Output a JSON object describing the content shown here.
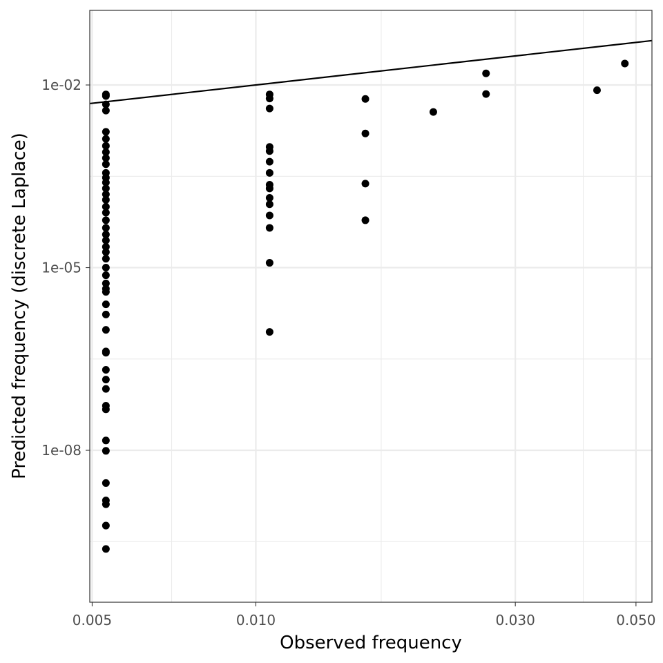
{
  "chart_data": {
    "type": "scatter",
    "title": "",
    "xlabel": "Observed frequency",
    "ylabel": "Predicted frequency (discrete Laplace)",
    "x_scale": "log10",
    "y_scale": "log10",
    "xlim": [
      0.00495,
      0.0535
    ],
    "ylim": [
      3.2e-11,
      0.168
    ],
    "x_ticks": [
      {
        "value": 0.005,
        "label": "0.005"
      },
      {
        "value": 0.01,
        "label": "0.010"
      },
      {
        "value": 0.03,
        "label": "0.030"
      },
      {
        "value": 0.05,
        "label": "0.050"
      }
    ],
    "x_minor_ticks": [
      0.007,
      0.017,
      0.04
    ],
    "y_ticks": [
      {
        "value": 0.01,
        "label": "1e-02"
      },
      {
        "value": 1e-05,
        "label": "1e-05"
      },
      {
        "value": 1e-08,
        "label": "1e-08"
      }
    ],
    "y_minor_ticks": [
      0.3,
      0.000316,
      3.16e-07,
      3.16e-10
    ],
    "grid": true,
    "reference_line": {
      "type": "identity",
      "description": "y = x"
    },
    "series": [
      {
        "marker": "filled-circle",
        "color": "#000000",
        "points": [
          {
            "x": 0.0053,
            "y": 0.007
          },
          {
            "x": 0.0053,
            "y": 0.0066
          },
          {
            "x": 0.0053,
            "y": 0.0048
          },
          {
            "x": 0.0053,
            "y": 0.0038
          },
          {
            "x": 0.0053,
            "y": 0.0017
          },
          {
            "x": 0.0053,
            "y": 0.0013
          },
          {
            "x": 0.0053,
            "y": 0.001
          },
          {
            "x": 0.0053,
            "y": 0.00079
          },
          {
            "x": 0.0053,
            "y": 0.00063
          },
          {
            "x": 0.0053,
            "y": 0.0005
          },
          {
            "x": 0.0053,
            "y": 0.00036
          },
          {
            "x": 0.0053,
            "y": 0.0003
          },
          {
            "x": 0.0053,
            "y": 0.00025
          },
          {
            "x": 0.0053,
            "y": 0.0002
          },
          {
            "x": 0.0053,
            "y": 0.00016
          },
          {
            "x": 0.0053,
            "y": 0.00013
          },
          {
            "x": 0.0053,
            "y": 0.0001
          },
          {
            "x": 0.0053,
            "y": 8e-05
          },
          {
            "x": 0.0053,
            "y": 6e-05
          },
          {
            "x": 0.0053,
            "y": 4.5e-05
          },
          {
            "x": 0.0053,
            "y": 3.5e-05
          },
          {
            "x": 0.0053,
            "y": 2.8e-05
          },
          {
            "x": 0.0053,
            "y": 2.2e-05
          },
          {
            "x": 0.0053,
            "y": 1.8e-05
          },
          {
            "x": 0.0053,
            "y": 1.4e-05
          },
          {
            "x": 0.0053,
            "y": 1e-05
          },
          {
            "x": 0.0053,
            "y": 7.5e-06
          },
          {
            "x": 0.0053,
            "y": 5.5e-06
          },
          {
            "x": 0.0053,
            "y": 4.5e-06
          },
          {
            "x": 0.0053,
            "y": 4e-06
          },
          {
            "x": 0.0053,
            "y": 2.5e-06
          },
          {
            "x": 0.0053,
            "y": 1.7e-06
          },
          {
            "x": 0.0053,
            "y": 9.5e-07
          },
          {
            "x": 0.0053,
            "y": 4.2e-07
          },
          {
            "x": 0.0053,
            "y": 4e-07
          },
          {
            "x": 0.0053,
            "y": 2.1e-07
          },
          {
            "x": 0.0053,
            "y": 1.45e-07
          },
          {
            "x": 0.0053,
            "y": 1.02e-07
          },
          {
            "x": 0.0053,
            "y": 5.4e-08
          },
          {
            "x": 0.0053,
            "y": 4.7e-08
          },
          {
            "x": 0.0053,
            "y": 1.45e-08
          },
          {
            "x": 0.0053,
            "y": 9.8e-09
          },
          {
            "x": 0.0053,
            "y": 2.9e-09
          },
          {
            "x": 0.0053,
            "y": 1.5e-09
          },
          {
            "x": 0.0053,
            "y": 1.3e-09
          },
          {
            "x": 0.0053,
            "y": 5.8e-10
          },
          {
            "x": 0.0053,
            "y": 2.4e-10
          },
          {
            "x": 0.0106,
            "y": 0.007
          },
          {
            "x": 0.0106,
            "y": 0.006
          },
          {
            "x": 0.0106,
            "y": 0.0041
          },
          {
            "x": 0.0106,
            "y": 0.00096
          },
          {
            "x": 0.0106,
            "y": 0.00082
          },
          {
            "x": 0.0106,
            "y": 0.00055
          },
          {
            "x": 0.0106,
            "y": 0.00036
          },
          {
            "x": 0.0106,
            "y": 0.00023
          },
          {
            "x": 0.0106,
            "y": 0.0002
          },
          {
            "x": 0.0106,
            "y": 0.00014
          },
          {
            "x": 0.0106,
            "y": 0.00011
          },
          {
            "x": 0.0106,
            "y": 7.2e-05
          },
          {
            "x": 0.0106,
            "y": 4.5e-05
          },
          {
            "x": 0.0106,
            "y": 1.2e-05
          },
          {
            "x": 0.0106,
            "y": 8.8e-07
          },
          {
            "x": 0.0159,
            "y": 0.0059
          },
          {
            "x": 0.0159,
            "y": 0.0016
          },
          {
            "x": 0.0159,
            "y": 0.00024
          },
          {
            "x": 0.0159,
            "y": 6e-05
          },
          {
            "x": 0.0212,
            "y": 0.0036
          },
          {
            "x": 0.0265,
            "y": 0.0155
          },
          {
            "x": 0.0265,
            "y": 0.0071
          },
          {
            "x": 0.0424,
            "y": 0.0082
          },
          {
            "x": 0.0477,
            "y": 0.0225
          }
        ]
      }
    ]
  }
}
